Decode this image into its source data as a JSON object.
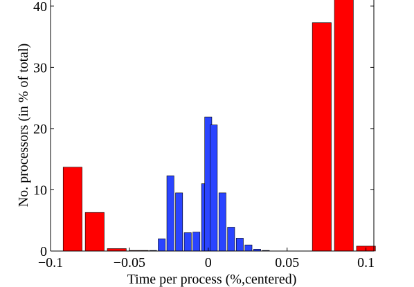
{
  "chart_data": {
    "type": "bar",
    "xlabel": "Time per process (%,centered)",
    "ylabel": "No. processors (in % of total)",
    "xlim": [
      -0.1,
      0.105
    ],
    "ylim": [
      0,
      41
    ],
    "x_ticks": [
      -0.1,
      -0.05,
      0,
      0.05,
      0.1
    ],
    "x_tick_labels": [
      "−0.1",
      "−0.05",
      "0",
      "0.05",
      "0.1"
    ],
    "y_ticks": [
      0,
      10,
      20,
      30,
      40
    ],
    "y_tick_labels": [
      "0",
      "10",
      "20",
      "30",
      "40"
    ],
    "grid": false,
    "legend": "none",
    "series": [
      {
        "color": "#ff0000",
        "bar_width": 0.012,
        "x": [
          -0.086,
          -0.072,
          -0.058,
          -0.044,
          0.072,
          0.086,
          0.1
        ],
        "values": [
          13.7,
          6.3,
          0.4,
          0.1,
          37.3,
          41.5,
          0.8
        ]
      },
      {
        "color": "#2a44ff",
        "bar_width": 0.0045,
        "x": [
          -0.0405,
          -0.035,
          -0.0295,
          -0.024,
          -0.0185,
          -0.013,
          -0.0075,
          -0.002,
          0,
          0.0035,
          0.009,
          0.0145,
          0.02,
          0.0255,
          0.031,
          0.0365
        ],
        "values": [
          0.05,
          0.1,
          2.0,
          12.3,
          9.5,
          3.0,
          3.1,
          11.0,
          21.9,
          20.6,
          9.5,
          3.9,
          2.1,
          1.0,
          0.3,
          0.1
        ]
      }
    ]
  }
}
